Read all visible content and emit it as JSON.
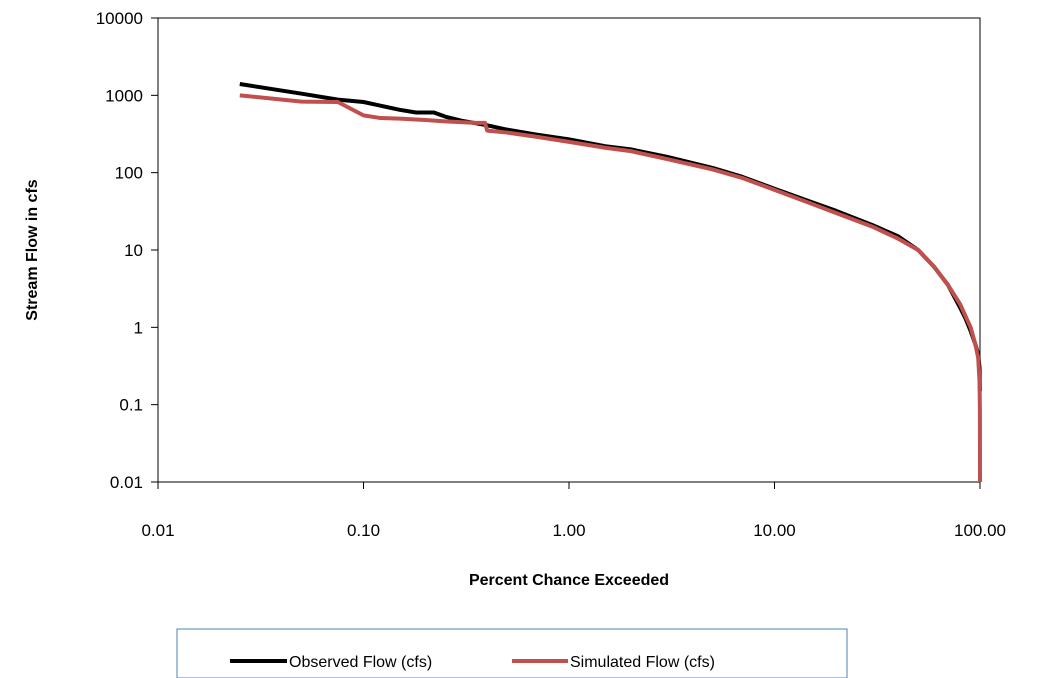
{
  "chart_data": {
    "type": "line",
    "title": "",
    "xlabel": "Percent Chance Exceeded",
    "ylabel": "Stream Flow in cfs",
    "x_scale": "log",
    "y_scale": "log",
    "xlim": [
      0.01,
      100
    ],
    "ylim": [
      0.01,
      10000
    ],
    "x_ticks": [
      0.01,
      0.1,
      1,
      10,
      100
    ],
    "x_tick_labels": [
      "0.01",
      "0.10",
      "1.00",
      "10.00",
      "100.00"
    ],
    "y_ticks": [
      0.01,
      0.1,
      1,
      10,
      100,
      1000,
      10000
    ],
    "y_tick_labels": [
      "0.01",
      "0.1",
      "1",
      "10",
      "100",
      "1000",
      "10000"
    ],
    "grid": false,
    "legend_position": "bottom",
    "series": [
      {
        "name": "Observed Flow (cfs)",
        "color": "#000000",
        "x": [
          0.025,
          0.05,
          0.075,
          0.1,
          0.15,
          0.18,
          0.22,
          0.25,
          0.3,
          0.4,
          0.5,
          0.7,
          1,
          1.5,
          2,
          3,
          5,
          7,
          10,
          15,
          20,
          30,
          40,
          50,
          60,
          70,
          80,
          85,
          90,
          95,
          98,
          99.5,
          99.9
        ],
        "values": [
          1400,
          1050,
          880,
          820,
          650,
          600,
          600,
          530,
          470,
          410,
          360,
          310,
          270,
          220,
          200,
          160,
          115,
          88,
          62,
          42,
          32,
          21,
          15,
          10,
          6,
          3.5,
          1.8,
          1.3,
          0.9,
          0.6,
          0.45,
          0.3,
          0.15
        ]
      },
      {
        "name": "Simulated Flow (cfs)",
        "color": "#c0504d",
        "x": [
          0.025,
          0.05,
          0.075,
          0.1,
          0.12,
          0.15,
          0.2,
          0.25,
          0.35,
          0.39,
          0.4,
          0.5,
          0.7,
          1,
          1.5,
          2,
          3,
          5,
          7,
          10,
          15,
          20,
          30,
          40,
          50,
          60,
          70,
          80,
          85,
          90,
          95,
          98,
          99.5,
          99.9,
          100
        ],
        "values": [
          1000,
          830,
          820,
          550,
          510,
          500,
          480,
          460,
          440,
          440,
          350,
          330,
          290,
          250,
          210,
          190,
          150,
          110,
          85,
          60,
          40,
          30,
          20,
          14,
          10,
          6,
          3.5,
          2,
          1.4,
          1,
          0.6,
          0.4,
          0.2,
          0.08,
          0.01
        ]
      }
    ]
  }
}
